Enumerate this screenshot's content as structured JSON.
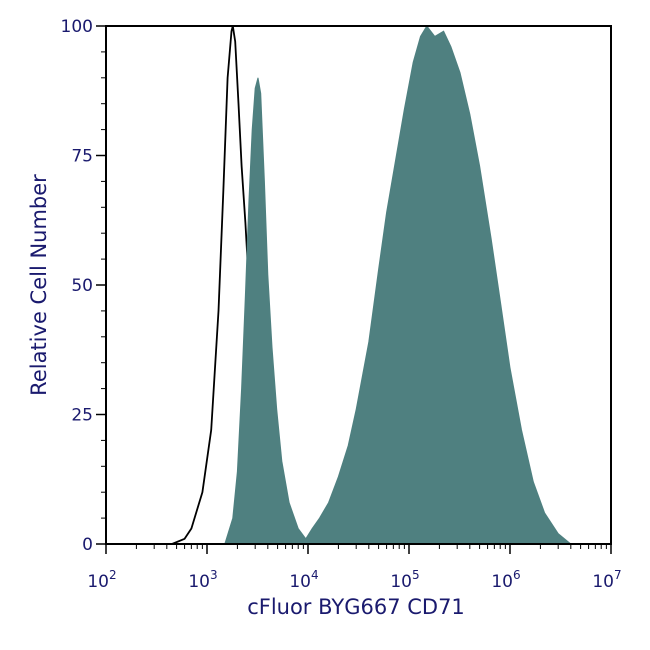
{
  "chart_data": {
    "type": "area",
    "xlabel": "cFluor BYG667 CD71",
    "ylabel": "Relative Cell Number",
    "x_scale": "log",
    "xlim": [
      100,
      10000000
    ],
    "ylim": [
      0,
      100
    ],
    "x_tick_labels": [
      {
        "base": "10",
        "exp": "2"
      },
      {
        "base": "10",
        "exp": "3"
      },
      {
        "base": "10",
        "exp": "4"
      },
      {
        "base": "10",
        "exp": "5"
      },
      {
        "base": "10",
        "exp": "6"
      },
      {
        "base": "10",
        "exp": "7"
      }
    ],
    "y_ticks": [
      0,
      25,
      50,
      75,
      100
    ],
    "y_tick_labels": [
      "0",
      "25",
      "50",
      "75",
      "100"
    ],
    "grid": false,
    "legend": "none",
    "series": [
      {
        "style": "outline",
        "color": "#000000",
        "points": [
          [
            450,
            0
          ],
          [
            600,
            1
          ],
          [
            700,
            3
          ],
          [
            900,
            10
          ],
          [
            1100,
            22
          ],
          [
            1300,
            45
          ],
          [
            1450,
            68
          ],
          [
            1600,
            90
          ],
          [
            1750,
            99
          ],
          [
            1800,
            100
          ],
          [
            1900,
            97
          ],
          [
            2050,
            85
          ],
          [
            2200,
            73
          ],
          [
            2400,
            62
          ],
          [
            2600,
            50
          ],
          [
            2900,
            40
          ],
          [
            3300,
            32
          ],
          [
            3700,
            25
          ],
          [
            4100,
            18
          ],
          [
            4600,
            10
          ],
          [
            5200,
            5
          ],
          [
            6000,
            2
          ],
          [
            7500,
            0
          ]
        ]
      },
      {
        "style": "filled",
        "color": "#4f8080",
        "points": [
          [
            1500,
            0
          ],
          [
            1800,
            5
          ],
          [
            2000,
            14
          ],
          [
            2200,
            30
          ],
          [
            2400,
            48
          ],
          [
            2600,
            66
          ],
          [
            2800,
            80
          ],
          [
            3000,
            88
          ],
          [
            3200,
            90
          ],
          [
            3400,
            87
          ],
          [
            3700,
            70
          ],
          [
            4000,
            52
          ],
          [
            4400,
            38
          ],
          [
            4900,
            26
          ],
          [
            5500,
            16
          ],
          [
            6500,
            8
          ],
          [
            8000,
            3
          ],
          [
            9500,
            1
          ],
          [
            11000,
            3
          ],
          [
            13000,
            5
          ],
          [
            16000,
            8
          ],
          [
            20000,
            13
          ],
          [
            25000,
            19
          ],
          [
            30000,
            26
          ],
          [
            40000,
            39
          ],
          [
            50000,
            53
          ],
          [
            60000,
            64
          ],
          [
            75000,
            75
          ],
          [
            90000,
            84
          ],
          [
            110000,
            93
          ],
          [
            130000,
            98
          ],
          [
            150000,
            100
          ],
          [
            180000,
            98
          ],
          [
            220000,
            99
          ],
          [
            260000,
            96
          ],
          [
            320000,
            91
          ],
          [
            400000,
            83
          ],
          [
            500000,
            73
          ],
          [
            650000,
            59
          ],
          [
            800000,
            47
          ],
          [
            1000000,
            34
          ],
          [
            1300000,
            22
          ],
          [
            1700000,
            12
          ],
          [
            2200000,
            6
          ],
          [
            3000000,
            2
          ],
          [
            4000000,
            0
          ]
        ]
      }
    ]
  }
}
